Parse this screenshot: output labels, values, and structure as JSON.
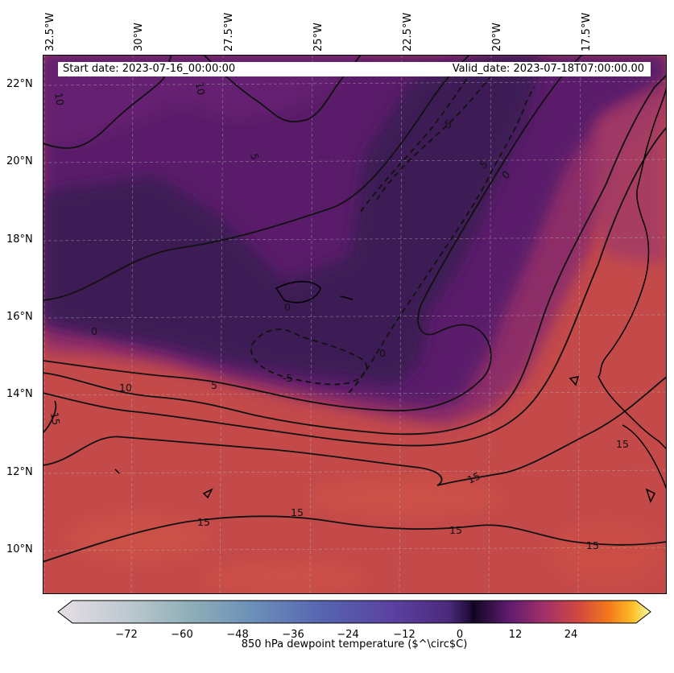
{
  "map": {
    "start_date_label": "Start date: 2023-07-16_00:00:00",
    "valid_date_label": "Valid_date: 2023-07-18T07:00:00.00",
    "longitude_labels": [
      "32.5°W",
      "30°W",
      "27.5°W",
      "25°W",
      "22.5°W",
      "20°W",
      "17.5°W"
    ],
    "latitude_labels": [
      "22°N",
      "20°N",
      "18°N",
      "16°N",
      "14°N",
      "12°N",
      "10°N"
    ],
    "contour_labels": [
      "10",
      "10",
      "5",
      "5",
      "0",
      "5",
      "0",
      "0",
      "0",
      "-5",
      "10",
      "5",
      "15",
      "15",
      "15",
      "15",
      "15",
      "15",
      "15"
    ],
    "colormap": "inferno-like (extended purples at low end)",
    "colors": {
      "dry_region": "#3f1e55",
      "moist_region": "#c74a49",
      "transition": "#8b2e6a",
      "contours": "#000000",
      "gridlines": "#bbbbbb",
      "coastlines": "#000000"
    },
    "gridlines": true
  },
  "colorbar": {
    "label": "850 hPa dewpoint temperature ($^\\circ$C)",
    "ticks": [
      "−72",
      "−60",
      "−48",
      "−36",
      "−24",
      "−12",
      "0",
      "12",
      "24"
    ],
    "range": [
      -84,
      36
    ],
    "extend": "both"
  }
}
